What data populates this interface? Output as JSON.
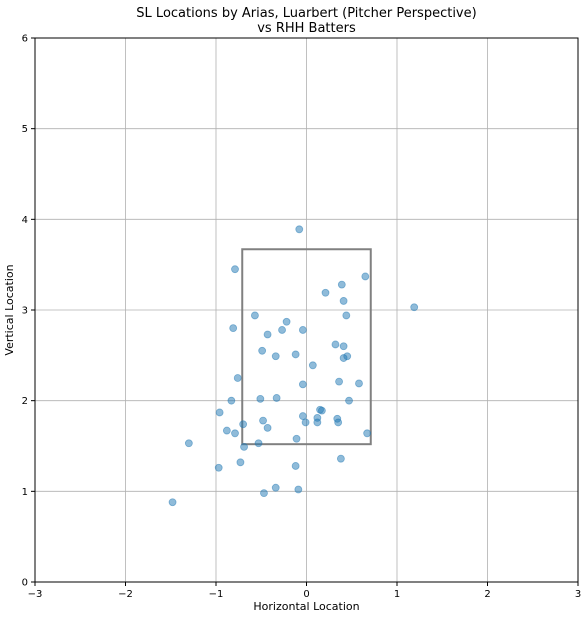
{
  "chart_data": {
    "type": "scatter",
    "title": "SL Locations by Arias, Luarbert (Pitcher Perspective)",
    "subtitle": "vs RHH Batters",
    "xlabel": "Horizontal Location",
    "ylabel": "Vertical Location",
    "xlim": [
      -3,
      3
    ],
    "ylim": [
      0,
      6
    ],
    "x_ticks": [
      -3,
      -2,
      -1,
      0,
      1,
      2,
      3
    ],
    "y_ticks": [
      0,
      1,
      2,
      3,
      4,
      5,
      6
    ],
    "x_tick_labels": [
      "−3",
      "−2",
      "−1",
      "0",
      "1",
      "2",
      "3"
    ],
    "y_tick_labels": [
      "0",
      "1",
      "2",
      "3",
      "4",
      "5",
      "6"
    ],
    "grid": true,
    "strike_zone": {
      "x": [
        -0.71,
        0.71
      ],
      "y": [
        1.52,
        3.67
      ]
    },
    "points": [
      {
        "x": -0.08,
        "y": 3.89
      },
      {
        "x": -0.79,
        "y": 3.45
      },
      {
        "x": 0.65,
        "y": 3.37
      },
      {
        "x": 0.39,
        "y": 3.28
      },
      {
        "x": 0.21,
        "y": 3.19
      },
      {
        "x": 0.41,
        "y": 3.1
      },
      {
        "x": 1.19,
        "y": 3.03
      },
      {
        "x": -0.57,
        "y": 2.94
      },
      {
        "x": 0.44,
        "y": 2.94
      },
      {
        "x": -0.22,
        "y": 2.87
      },
      {
        "x": -0.81,
        "y": 2.8
      },
      {
        "x": -0.27,
        "y": 2.78
      },
      {
        "x": -0.04,
        "y": 2.78
      },
      {
        "x": -0.43,
        "y": 2.73
      },
      {
        "x": 0.32,
        "y": 2.62
      },
      {
        "x": 0.41,
        "y": 2.6
      },
      {
        "x": -0.49,
        "y": 2.55
      },
      {
        "x": -0.12,
        "y": 2.51
      },
      {
        "x": -0.34,
        "y": 2.49
      },
      {
        "x": 0.45,
        "y": 2.49
      },
      {
        "x": 0.41,
        "y": 2.47
      },
      {
        "x": 0.07,
        "y": 2.39
      },
      {
        "x": -0.76,
        "y": 2.25
      },
      {
        "x": 0.36,
        "y": 2.21
      },
      {
        "x": 0.58,
        "y": 2.19
      },
      {
        "x": -0.04,
        "y": 2.18
      },
      {
        "x": -0.33,
        "y": 2.03
      },
      {
        "x": -0.51,
        "y": 2.02
      },
      {
        "x": -0.83,
        "y": 2.0
      },
      {
        "x": 0.47,
        "y": 2.0
      },
      {
        "x": 0.15,
        "y": 1.9
      },
      {
        "x": 0.17,
        "y": 1.89
      },
      {
        "x": -0.96,
        "y": 1.87
      },
      {
        "x": -0.04,
        "y": 1.83
      },
      {
        "x": 0.12,
        "y": 1.81
      },
      {
        "x": 0.34,
        "y": 1.8
      },
      {
        "x": -0.48,
        "y": 1.78
      },
      {
        "x": -0.01,
        "y": 1.76
      },
      {
        "x": 0.12,
        "y": 1.76
      },
      {
        "x": 0.35,
        "y": 1.76
      },
      {
        "x": -0.7,
        "y": 1.74
      },
      {
        "x": -0.43,
        "y": 1.7
      },
      {
        "x": -0.88,
        "y": 1.67
      },
      {
        "x": -0.79,
        "y": 1.64
      },
      {
        "x": 0.67,
        "y": 1.64
      },
      {
        "x": -0.11,
        "y": 1.58
      },
      {
        "x": -1.3,
        "y": 1.53
      },
      {
        "x": -0.53,
        "y": 1.53
      },
      {
        "x": -0.69,
        "y": 1.49
      },
      {
        "x": 0.38,
        "y": 1.36
      },
      {
        "x": -0.73,
        "y": 1.32
      },
      {
        "x": -0.12,
        "y": 1.28
      },
      {
        "x": -0.97,
        "y": 1.26
      },
      {
        "x": -0.34,
        "y": 1.04
      },
      {
        "x": -0.09,
        "y": 1.02
      },
      {
        "x": -0.47,
        "y": 0.98
      },
      {
        "x": -1.48,
        "y": 0.88
      }
    ],
    "colors": {
      "points": "#1f77b4",
      "point_edge": "#1f77b4",
      "grid": "#b0b0b0",
      "axis": "#000000",
      "strike_zone": "#808080"
    }
  }
}
